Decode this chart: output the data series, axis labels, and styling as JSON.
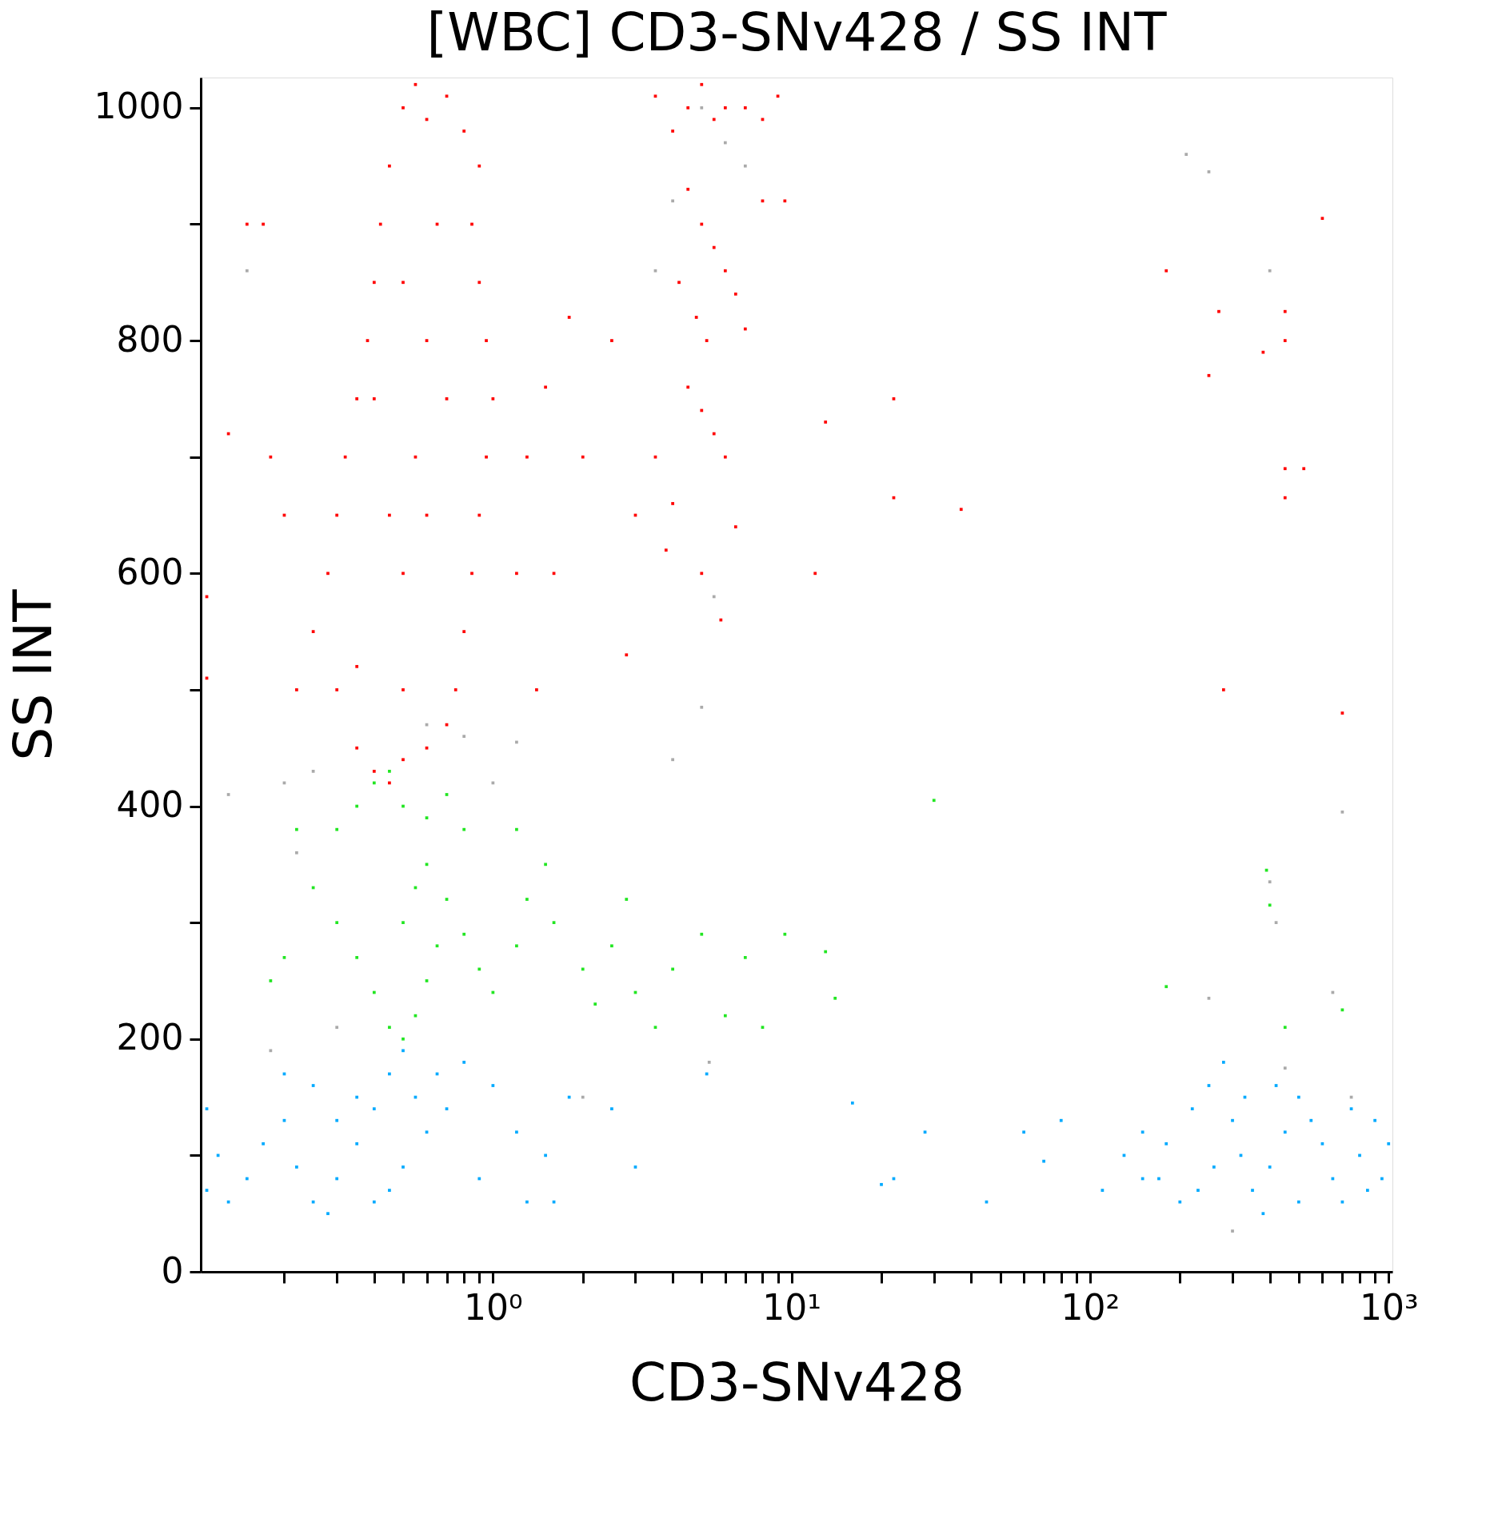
{
  "chart_data": {
    "type": "scatter",
    "title": "[WBC] CD3-SNv428 / SS INT",
    "xlabel": "CD3-SNv428",
    "ylabel": "SS INT",
    "log": "x",
    "grid": false,
    "legend": false,
    "marker": "square",
    "xlim": [
      0.105,
      1030
    ],
    "ylim": [
      0,
      1026
    ],
    "xticks": [
      {
        "value": 0.2,
        "label": null
      },
      {
        "value": 0.3,
        "label": null
      },
      {
        "value": 0.4,
        "label": null
      },
      {
        "value": 0.5,
        "label": null
      },
      {
        "value": 0.6,
        "label": null
      },
      {
        "value": 0.7,
        "label": null
      },
      {
        "value": 0.8,
        "label": null
      },
      {
        "value": 0.9,
        "label": null
      },
      {
        "value": 1,
        "label": "10⁰"
      },
      {
        "value": 2,
        "label": null
      },
      {
        "value": 3,
        "label": null
      },
      {
        "value": 4,
        "label": null
      },
      {
        "value": 5,
        "label": null
      },
      {
        "value": 6,
        "label": null
      },
      {
        "value": 7,
        "label": null
      },
      {
        "value": 8,
        "label": null
      },
      {
        "value": 9,
        "label": null
      },
      {
        "value": 10,
        "label": "10¹"
      },
      {
        "value": 20,
        "label": null
      },
      {
        "value": 30,
        "label": null
      },
      {
        "value": 40,
        "label": null
      },
      {
        "value": 50,
        "label": null
      },
      {
        "value": 60,
        "label": null
      },
      {
        "value": 70,
        "label": null
      },
      {
        "value": 80,
        "label": null
      },
      {
        "value": 90,
        "label": null
      },
      {
        "value": 100,
        "label": "10²"
      },
      {
        "value": 200,
        "label": null
      },
      {
        "value": 300,
        "label": null
      },
      {
        "value": 400,
        "label": null
      },
      {
        "value": 500,
        "label": null
      },
      {
        "value": 600,
        "label": null
      },
      {
        "value": 700,
        "label": null
      },
      {
        "value": 800,
        "label": null
      },
      {
        "value": 900,
        "label": null
      },
      {
        "value": 1000,
        "label": "10³"
      }
    ],
    "yticks": [
      0,
      {
        "value": 100,
        "label": null
      },
      200,
      {
        "value": 300,
        "label": null
      },
      400,
      {
        "value": 500,
        "label": null
      },
      600,
      {
        "value": 700,
        "label": null
      },
      800,
      {
        "value": 900,
        "label": null
      },
      1000
    ],
    "series": [
      {
        "color": "#aaaaaa",
        "x": [
          0.15,
          0.13,
          0.2,
          0.22,
          0.25,
          0.18,
          0.3,
          0.6,
          0.8,
          1.0,
          1.2,
          4,
          5,
          5.5,
          5,
          6,
          7,
          4,
          3.5,
          2.0,
          5.3,
          210,
          250,
          400,
          700,
          400,
          420,
          650,
          250,
          450,
          300,
          750
        ],
        "values": [
          860,
          410,
          420,
          360,
          430,
          190,
          210,
          470,
          460,
          420,
          455,
          440,
          485,
          580,
          1000,
          970,
          950,
          920,
          860,
          150,
          180,
          960,
          945,
          860,
          395,
          335,
          300,
          240,
          235,
          175,
          35,
          150
        ]
      },
      {
        "color": "#ff0000",
        "x": [
          0.35,
          0.4,
          0.45,
          0.5,
          0.6,
          0.7,
          0.3,
          0.35,
          0.25,
          0.28,
          0.3,
          0.32,
          0.35,
          0.38,
          0.4,
          0.42,
          0.45,
          0.5,
          0.55,
          0.6,
          0.7,
          0.8,
          0.9,
          0.85,
          0.9,
          0.95,
          1.0,
          0.95,
          0.9,
          0.85,
          0.8,
          0.75,
          0.5,
          0.55,
          0.6,
          0.5,
          0.45,
          0.65,
          0.6,
          0.4,
          0.7,
          0.5,
          0.2,
          0.18,
          0.15,
          0.17,
          0.13,
          0.11,
          0.11,
          0.22,
          1.2,
          1.3,
          1.5,
          1.8,
          2.0,
          1.6,
          2.5,
          3.0,
          1.4,
          2.8,
          3.5,
          4,
          4.5,
          5,
          5.5,
          6,
          7,
          8,
          9,
          4.5,
          5,
          5.5,
          6,
          4.2,
          4.8,
          5.2,
          6.5,
          7,
          4.5,
          5,
          5.5,
          6,
          4,
          3.8,
          5,
          6.5,
          5.8,
          3.5,
          8,
          9.5,
          12,
          13,
          22,
          22,
          37,
          180,
          270,
          250,
          380,
          450,
          450,
          600,
          450,
          520,
          450,
          280,
          700
        ],
        "values": [
          450,
          430,
          420,
          440,
          450,
          470,
          500,
          520,
          550,
          600,
          650,
          700,
          750,
          800,
          850,
          900,
          950,
          1000,
          1020,
          990,
          1010,
          980,
          950,
          900,
          850,
          800,
          750,
          700,
          650,
          600,
          550,
          500,
          600,
          700,
          800,
          500,
          650,
          900,
          650,
          750,
          750,
          850,
          650,
          700,
          900,
          900,
          720,
          580,
          510,
          500,
          600,
          700,
          760,
          820,
          700,
          600,
          800,
          650,
          500,
          530,
          1010,
          980,
          1000,
          1020,
          990,
          1000,
          1000,
          990,
          1010,
          930,
          900,
          880,
          860,
          850,
          820,
          800,
          840,
          810,
          760,
          740,
          720,
          700,
          660,
          620,
          600,
          640,
          560,
          700,
          920,
          920,
          600,
          730,
          750,
          665,
          655,
          860,
          825,
          770,
          790,
          825,
          800,
          905,
          690,
          690,
          665,
          500,
          480
        ]
      },
      {
        "color": "#22e622",
        "x": [
          0.3,
          0.35,
          0.4,
          0.45,
          0.5,
          0.6,
          0.7,
          0.8,
          0.25,
          0.3,
          0.35,
          0.4,
          0.45,
          0.5,
          0.55,
          0.6,
          0.65,
          0.5,
          0.55,
          0.6,
          0.7,
          0.8,
          0.9,
          1.0,
          1.2,
          1.3,
          1.5,
          1.2,
          1.6,
          2.0,
          2.2,
          2.5,
          3,
          3.5,
          4,
          5,
          6,
          7,
          8,
          2.8,
          0.2,
          0.18,
          0.22,
          9.5,
          13,
          14,
          30,
          180,
          390,
          400,
          700,
          450
        ],
        "values": [
          380,
          400,
          420,
          430,
          400,
          390,
          410,
          380,
          330,
          300,
          270,
          240,
          210,
          200,
          220,
          250,
          280,
          300,
          330,
          350,
          320,
          290,
          260,
          240,
          280,
          320,
          350,
          380,
          300,
          260,
          230,
          280,
          240,
          210,
          260,
          290,
          220,
          270,
          210,
          320,
          270,
          250,
          380,
          290,
          275,
          235,
          405,
          245,
          345,
          315,
          225,
          210
        ]
      },
      {
        "color": "#00aaff",
        "x": [
          0.11,
          0.12,
          0.11,
          0.13,
          0.15,
          0.17,
          0.2,
          0.22,
          0.25,
          0.28,
          0.3,
          0.35,
          0.4,
          0.45,
          0.5,
          0.55,
          0.6,
          0.5,
          0.45,
          0.4,
          0.35,
          0.3,
          0.25,
          0.2,
          0.65,
          0.7,
          0.8,
          1.0,
          1.2,
          1.5,
          0.9,
          1.8,
          2.5,
          3.0,
          1.3,
          1.6,
          5.2,
          16,
          20,
          22,
          28,
          45,
          60,
          70,
          80,
          110,
          130,
          150,
          170,
          200,
          220,
          250,
          280,
          300,
          320,
          350,
          380,
          400,
          450,
          500,
          550,
          600,
          650,
          700,
          800,
          900,
          1000,
          950,
          750,
          260,
          180,
          420,
          330,
          150,
          500,
          230,
          850
        ],
        "values": [
          140,
          100,
          70,
          60,
          80,
          110,
          130,
          90,
          60,
          50,
          80,
          110,
          140,
          170,
          190,
          150,
          120,
          90,
          70,
          60,
          150,
          130,
          160,
          170,
          170,
          140,
          180,
          160,
          120,
          100,
          80,
          150,
          140,
          90,
          60,
          60,
          170,
          145,
          75,
          80,
          120,
          60,
          120,
          95,
          130,
          70,
          100,
          120,
          80,
          60,
          140,
          160,
          180,
          130,
          100,
          70,
          50,
          90,
          120,
          150,
          130,
          110,
          80,
          60,
          100,
          130,
          110,
          80,
          140,
          90,
          110,
          160,
          150,
          80,
          60,
          70,
          70
        ]
      }
    ]
  }
}
